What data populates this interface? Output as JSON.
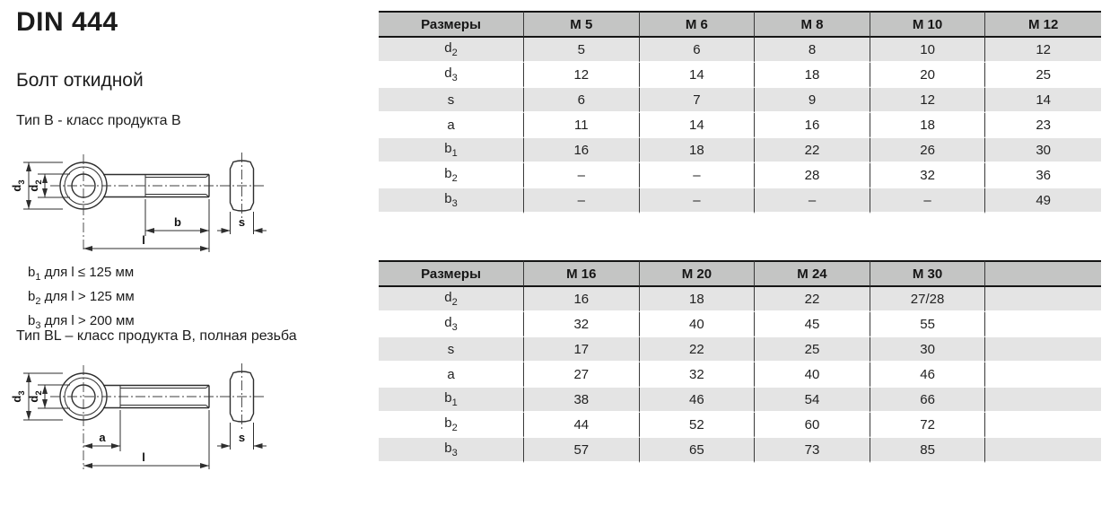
{
  "header": {
    "title": "DIN 444",
    "product": "Болт откидной",
    "type_b": "Тип B - класс продукта B",
    "type_bl": "Тип BL – класс продукта B, полная резьба"
  },
  "notes": [
    {
      "base": "b",
      "sub": "1",
      "text": " для l ≤ 125 мм"
    },
    {
      "base": "b",
      "sub": "2",
      "text": " для l > 125 мм"
    },
    {
      "base": "b",
      "sub": "3",
      "text": " для l > 200 мм"
    }
  ],
  "drawing_labels": {
    "d3": {
      "base": "d",
      "sub": "3"
    },
    "d2": {
      "base": "d",
      "sub": "2"
    },
    "b": "b",
    "l": "l",
    "a": "a",
    "s": "s"
  },
  "tables": [
    {
      "header_label": "Размеры",
      "columns": [
        "M 5",
        "M 6",
        "M 8",
        "M 10",
        "M 12"
      ],
      "rows": [
        {
          "label": {
            "base": "d",
            "sub": "2"
          },
          "values": [
            "5",
            "6",
            "8",
            "10",
            "12"
          ]
        },
        {
          "label": {
            "base": "d",
            "sub": "3"
          },
          "values": [
            "12",
            "14",
            "18",
            "20",
            "25"
          ]
        },
        {
          "label": {
            "base": "s",
            "sub": ""
          },
          "values": [
            "6",
            "7",
            "9",
            "12",
            "14"
          ]
        },
        {
          "label": {
            "base": "a",
            "sub": ""
          },
          "values": [
            "11",
            "14",
            "16",
            "18",
            "23"
          ]
        },
        {
          "label": {
            "base": "b",
            "sub": "1"
          },
          "values": [
            "16",
            "18",
            "22",
            "26",
            "30"
          ]
        },
        {
          "label": {
            "base": "b",
            "sub": "2"
          },
          "values": [
            "–",
            "–",
            "28",
            "32",
            "36"
          ]
        },
        {
          "label": {
            "base": "b",
            "sub": "3"
          },
          "values": [
            "–",
            "–",
            "–",
            "–",
            "49"
          ]
        }
      ]
    },
    {
      "header_label": "Размеры",
      "columns": [
        "M 16",
        "M 20",
        "M 24",
        "M 30",
        ""
      ],
      "rows": [
        {
          "label": {
            "base": "d",
            "sub": "2"
          },
          "values": [
            "16",
            "18",
            "22",
            "27/28",
            ""
          ]
        },
        {
          "label": {
            "base": "d",
            "sub": "3"
          },
          "values": [
            "32",
            "40",
            "45",
            "55",
            ""
          ]
        },
        {
          "label": {
            "base": "s",
            "sub": ""
          },
          "values": [
            "17",
            "22",
            "25",
            "30",
            ""
          ]
        },
        {
          "label": {
            "base": "a",
            "sub": ""
          },
          "values": [
            "27",
            "32",
            "40",
            "46",
            ""
          ]
        },
        {
          "label": {
            "base": "b",
            "sub": "1"
          },
          "values": [
            "38",
            "46",
            "54",
            "66",
            ""
          ]
        },
        {
          "label": {
            "base": "b",
            "sub": "2"
          },
          "values": [
            "44",
            "52",
            "60",
            "72",
            ""
          ]
        },
        {
          "label": {
            "base": "b",
            "sub": "3"
          },
          "values": [
            "57",
            "65",
            "73",
            "85",
            ""
          ]
        }
      ]
    }
  ],
  "colors": {
    "table_header_bg": "#c4c5c4",
    "table_stripe_bg": "#e4e4e4",
    "table_border": "#161616",
    "text": "#1c1c1c"
  }
}
